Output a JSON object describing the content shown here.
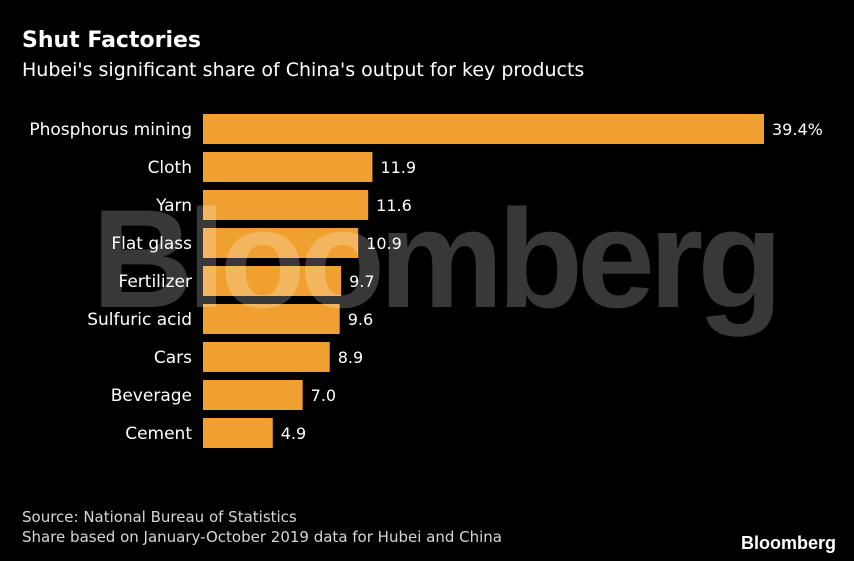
{
  "title": "Shut Factories",
  "subtitle": "Hubei's significant share of China's output for key products",
  "source": "Source: National Bureau of Statistics",
  "note": "Share based on January-October 2019 data for Hubei and China",
  "brand": "Bloomberg",
  "watermark": "Bloomberg",
  "colors": {
    "background": "#000000",
    "bar": "#f0a030",
    "text": "#ffffff"
  },
  "chart_data": {
    "type": "bar",
    "orientation": "horizontal",
    "categories": [
      "Phosphorus mining",
      "Cloth",
      "Yarn",
      "Flat glass",
      "Fertilizer",
      "Sulfuric acid",
      "Cars",
      "Beverage",
      "Cement"
    ],
    "values": [
      39.4,
      11.9,
      11.6,
      10.9,
      9.7,
      9.6,
      8.9,
      7.0,
      4.9
    ],
    "value_labels": [
      "39.4%",
      "11.9",
      "11.6",
      "10.9",
      "9.7",
      "9.6",
      "8.9",
      "7.0",
      "4.9"
    ],
    "title": "Shut Factories",
    "subtitle": "Hubei's significant share of China's output for key products",
    "xlabel": "",
    "ylabel": "",
    "xlim": [
      0,
      39.4
    ],
    "grid": false,
    "legend": "none"
  }
}
